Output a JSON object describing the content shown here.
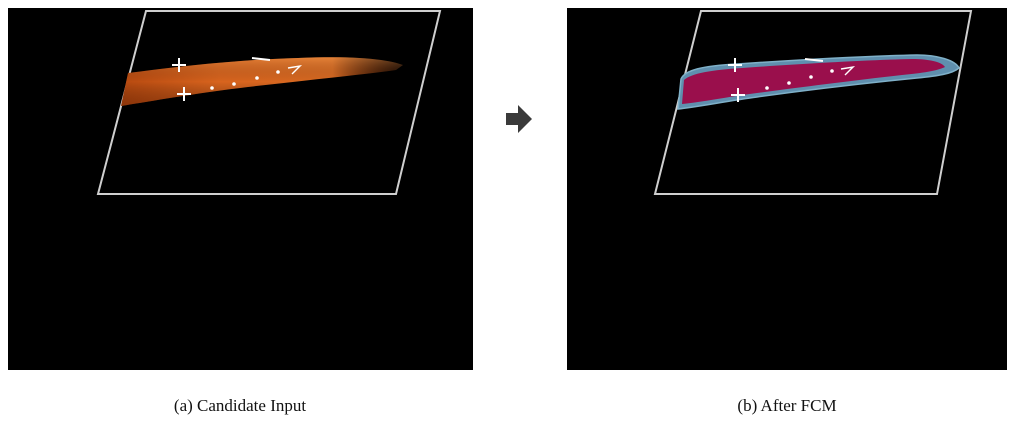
{
  "figure": {
    "panel_a": {
      "caption": "(a) Candidate Input"
    },
    "panel_b": {
      "caption": "(b) After FCM"
    },
    "colors": {
      "background": "#000000",
      "frame": "#cfcfcf",
      "candidate_orange": "#d8641e",
      "fcm_magenta": "#9a0f4c",
      "fcm_border_teal": "#5f8fae",
      "marker": "#ffffff",
      "arrow": "#3a3a3a"
    },
    "icons": {
      "transition": "right-arrow-icon",
      "markers": "plus-marker-icon"
    }
  }
}
